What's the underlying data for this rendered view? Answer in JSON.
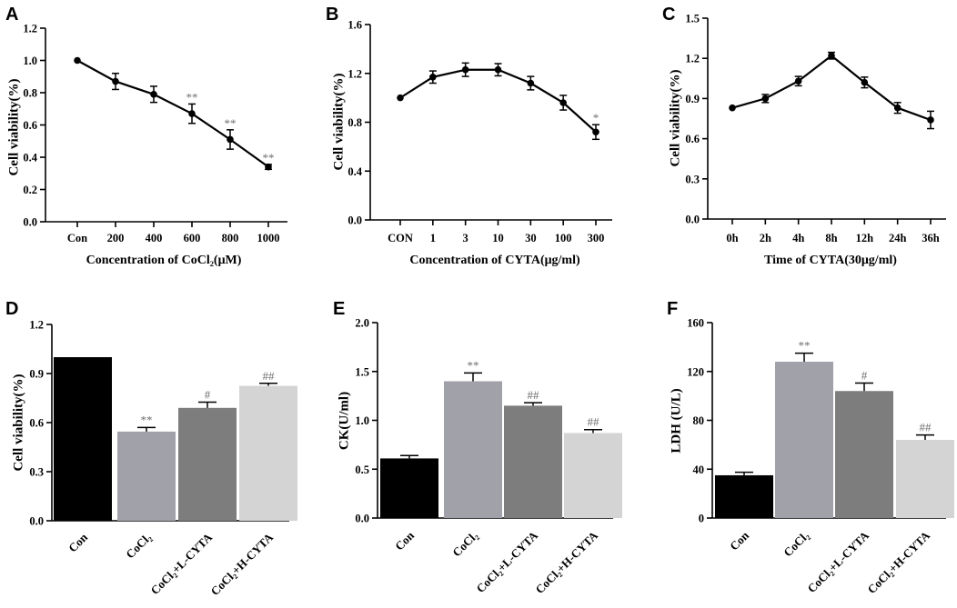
{
  "chart_data": [
    {
      "panel": "A",
      "type": "line",
      "categories": [
        "Con",
        "200",
        "400",
        "600",
        "800",
        "1000"
      ],
      "values": [
        1.0,
        0.87,
        0.79,
        0.67,
        0.51,
        0.34
      ],
      "errors": [
        0.0,
        0.05,
        0.05,
        0.06,
        0.06,
        0.015
      ],
      "annotations": [
        "",
        "",
        "",
        "**",
        "**",
        "**"
      ],
      "xlabel": "Concentration of CoCl₂(μM)",
      "ylabel": "Cell viability(%)",
      "ylim": [
        0,
        1.2
      ],
      "yticks": [
        "0.0",
        "0.2",
        "0.4",
        "0.6",
        "0.8",
        "1.0",
        "1.2"
      ],
      "ytick_values": [
        0,
        0.2,
        0.4,
        0.6,
        0.8,
        1.0,
        1.2
      ]
    },
    {
      "panel": "B",
      "type": "line",
      "categories": [
        "CON",
        "1",
        "3",
        "10",
        "30",
        "100",
        "300"
      ],
      "values": [
        1.0,
        1.17,
        1.23,
        1.23,
        1.12,
        0.96,
        0.72
      ],
      "errors": [
        0.0,
        0.05,
        0.055,
        0.05,
        0.055,
        0.06,
        0.06
      ],
      "annotations": [
        "",
        "",
        "",
        "",
        "",
        "",
        "*"
      ],
      "xlabel": "Concentration of CYTA(μg/ml)",
      "ylabel": "Cell viability(%)",
      "ylim": [
        0,
        1.6
      ],
      "yticks": [
        "0.0",
        "0.4",
        "0.8",
        "1.2",
        "1.6"
      ],
      "ytick_values": [
        0,
        0.4,
        0.8,
        1.2,
        1.6
      ]
    },
    {
      "panel": "C",
      "type": "line",
      "categories": [
        "0h",
        "2h",
        "4h",
        "8h",
        "12h",
        "24h",
        "36h"
      ],
      "values": [
        0.83,
        0.9,
        1.03,
        1.22,
        1.02,
        0.83,
        0.74
      ],
      "errors": [
        0.0,
        0.03,
        0.035,
        0.025,
        0.04,
        0.04,
        0.065
      ],
      "annotations": [
        "",
        "",
        "",
        "",
        "",
        "",
        ""
      ],
      "xlabel": "Time of CYTA(30μg/ml)",
      "ylabel": "Cell viability(%)",
      "ylim": [
        0,
        1.5
      ],
      "yticks": [
        "0.0",
        "0.3",
        "0.6",
        "0.9",
        "1.2",
        "1.5"
      ],
      "ytick_values": [
        0,
        0.3,
        0.6,
        0.9,
        1.2,
        1.5
      ]
    },
    {
      "panel": "D",
      "type": "bar",
      "categories": [
        "Con",
        "CoCl₂",
        "CoCl₂+L-CYTA",
        "CoCl₂+H-CYTA"
      ],
      "values": [
        1.0,
        0.545,
        0.69,
        0.825
      ],
      "errors": [
        0.0,
        0.025,
        0.035,
        0.015
      ],
      "annotations": [
        "",
        "**",
        "#",
        "##"
      ],
      "bar_colors": [
        "#000000",
        "#a1a1a9",
        "#7d7d7d",
        "#d4d4d4"
      ],
      "xlabel": "",
      "ylabel": "Cell viability(%)",
      "ylim": [
        0,
        1.2
      ],
      "yticks": [
        "0.0",
        "0.3",
        "0.6",
        "0.9",
        "1.2"
      ],
      "ytick_values": [
        0,
        0.3,
        0.6,
        0.9,
        1.2
      ]
    },
    {
      "panel": "E",
      "type": "bar",
      "categories": [
        "Con",
        "CoCl₂",
        "CoCl₂+L-CYTA",
        "CoCl₂+H-CYTA"
      ],
      "values": [
        0.61,
        1.4,
        1.15,
        0.87
      ],
      "errors": [
        0.03,
        0.085,
        0.03,
        0.035
      ],
      "annotations": [
        "",
        "**",
        "##",
        "##"
      ],
      "bar_colors": [
        "#000000",
        "#a1a1a9",
        "#7d7d7d",
        "#d4d4d4"
      ],
      "xlabel": "",
      "ylabel": "CK(U/ml)",
      "ylim": [
        0,
        2.0
      ],
      "yticks": [
        "0.0",
        "0.5",
        "1.0",
        "1.5",
        "2.0"
      ],
      "ytick_values": [
        0,
        0.5,
        1.0,
        1.5,
        2.0
      ]
    },
    {
      "panel": "F",
      "type": "bar",
      "categories": [
        "Con",
        "CoCl₂",
        "CoCl₂+L-CYTA",
        "CoCl₂+H-CYTA"
      ],
      "values": [
        35,
        128,
        104,
        64
      ],
      "errors": [
        2.5,
        7.0,
        6.5,
        4.0
      ],
      "annotations": [
        "",
        "**",
        "#",
        "##"
      ],
      "bar_colors": [
        "#000000",
        "#a1a1a9",
        "#7d7d7d",
        "#d4d4d4"
      ],
      "xlabel": "",
      "ylabel": "LDH (U/L)",
      "ylim": [
        0,
        160
      ],
      "yticks": [
        "0",
        "40",
        "80",
        "120",
        "160"
      ],
      "ytick_values": [
        0,
        40,
        80,
        120,
        160
      ]
    }
  ]
}
